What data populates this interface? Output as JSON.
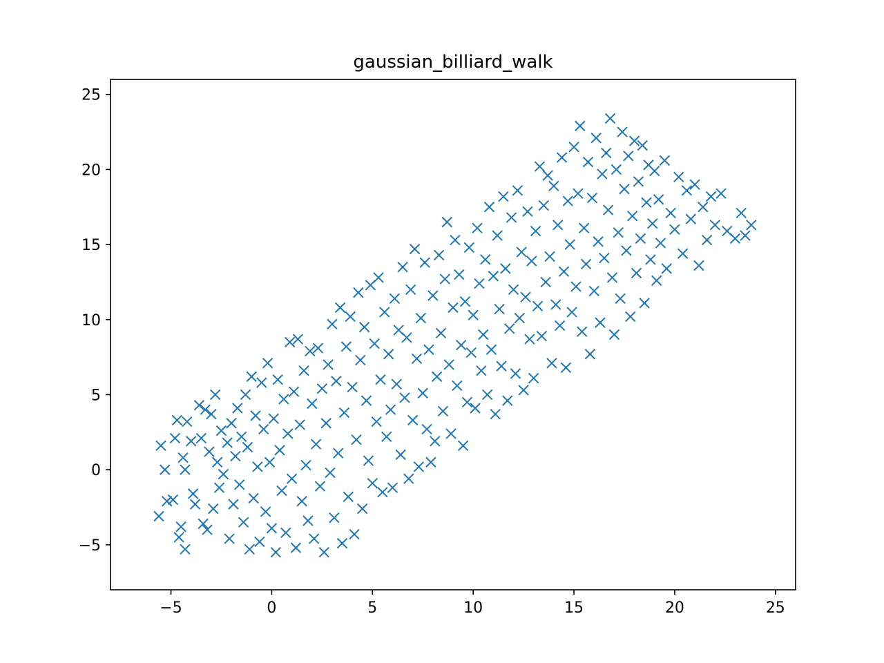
{
  "chart_data": {
    "type": "scatter",
    "title": "gaussian_billiard_walk",
    "xlabel": "",
    "ylabel": "",
    "xlim": [
      -8,
      26
    ],
    "ylim": [
      -8,
      26
    ],
    "xticks": [
      -5,
      0,
      5,
      10,
      15,
      20,
      25
    ],
    "yticks": [
      -5,
      0,
      5,
      10,
      15,
      20,
      25
    ],
    "xtick_labels": [
      "−5",
      "0",
      "5",
      "10",
      "15",
      "20",
      "25"
    ],
    "ytick_labels": [
      "−5",
      "0",
      "5",
      "10",
      "15",
      "20",
      "25"
    ],
    "grid": false,
    "legend": "none",
    "marker": "x",
    "color": "#1f77b4",
    "series": [
      {
        "values": [
          [
            -5.5,
            1.6
          ],
          [
            -5.3,
            0.0
          ],
          [
            -5.6,
            -3.1
          ],
          [
            -5.2,
            -2.1
          ],
          [
            -4.9,
            -2.0
          ],
          [
            -4.8,
            2.1
          ],
          [
            -4.7,
            3.3
          ],
          [
            -4.5,
            -3.8
          ],
          [
            -4.6,
            -4.5
          ],
          [
            -4.3,
            -5.3
          ],
          [
            -4.4,
            0.8
          ],
          [
            -4.3,
            0.0
          ],
          [
            -4.2,
            3.2
          ],
          [
            -4.0,
            1.9
          ],
          [
            -3.9,
            -1.6
          ],
          [
            -3.8,
            -2.3
          ],
          [
            -3.6,
            4.3
          ],
          [
            -3.5,
            2.1
          ],
          [
            -3.4,
            -3.6
          ],
          [
            -3.3,
            4.0
          ],
          [
            -3.2,
            -4.0
          ],
          [
            -3.1,
            1.2
          ],
          [
            -3.0,
            3.7
          ],
          [
            -2.9,
            -2.6
          ],
          [
            -2.8,
            5.0
          ],
          [
            -2.7,
            0.5
          ],
          [
            -2.6,
            -1.2
          ],
          [
            -2.5,
            2.6
          ],
          [
            -2.4,
            -0.3
          ],
          [
            -2.2,
            1.8
          ],
          [
            -2.1,
            -4.6
          ],
          [
            -2.0,
            3.1
          ],
          [
            -1.9,
            -2.3
          ],
          [
            -1.8,
            0.9
          ],
          [
            -1.7,
            4.1
          ],
          [
            -1.6,
            -1.0
          ],
          [
            -1.5,
            2.2
          ],
          [
            -1.4,
            -3.5
          ],
          [
            -1.3,
            5.0
          ],
          [
            -1.2,
            1.5
          ],
          [
            -1.1,
            -5.3
          ],
          [
            -1.0,
            6.2
          ],
          [
            -0.9,
            -1.9
          ],
          [
            -0.8,
            3.6
          ],
          [
            -0.7,
            0.2
          ],
          [
            -0.6,
            -4.8
          ],
          [
            -0.5,
            5.8
          ],
          [
            -0.4,
            2.7
          ],
          [
            -0.3,
            -2.8
          ],
          [
            -0.2,
            7.1
          ],
          [
            -0.1,
            0.5
          ],
          [
            0.0,
            -3.9
          ],
          [
            0.1,
            3.4
          ],
          [
            0.2,
            -5.5
          ],
          [
            0.3,
            6.0
          ],
          [
            0.4,
            1.3
          ],
          [
            0.5,
            -1.4
          ],
          [
            0.6,
            4.7
          ],
          [
            0.7,
            -4.2
          ],
          [
            0.8,
            2.4
          ],
          [
            0.9,
            8.5
          ],
          [
            1.0,
            -0.6
          ],
          [
            1.1,
            5.2
          ],
          [
            1.2,
            -5.2
          ],
          [
            1.3,
            8.7
          ],
          [
            1.4,
            3.0
          ],
          [
            1.5,
            -2.1
          ],
          [
            1.6,
            6.6
          ],
          [
            1.7,
            0.3
          ],
          [
            1.8,
            -3.4
          ],
          [
            1.9,
            7.9
          ],
          [
            2.0,
            4.4
          ],
          [
            2.1,
            -4.6
          ],
          [
            2.2,
            1.7
          ],
          [
            2.3,
            8.1
          ],
          [
            2.4,
            -1.1
          ],
          [
            2.5,
            5.4
          ],
          [
            2.6,
            -5.5
          ],
          [
            2.7,
            3.1
          ],
          [
            2.8,
            7.0
          ],
          [
            2.9,
            -0.2
          ],
          [
            3.0,
            9.7
          ],
          [
            3.1,
            -3.2
          ],
          [
            3.2,
            5.9
          ],
          [
            3.3,
            1.1
          ],
          [
            3.4,
            10.8
          ],
          [
            3.5,
            -4.9
          ],
          [
            3.6,
            3.8
          ],
          [
            3.7,
            8.2
          ],
          [
            3.8,
            -1.8
          ],
          [
            3.9,
            10.2
          ],
          [
            4.0,
            5.5
          ],
          [
            4.1,
            -4.3
          ],
          [
            4.2,
            2.0
          ],
          [
            4.3,
            11.8
          ],
          [
            4.4,
            7.3
          ],
          [
            4.5,
            -2.6
          ],
          [
            4.6,
            9.5
          ],
          [
            4.7,
            4.6
          ],
          [
            4.8,
            0.6
          ],
          [
            4.9,
            12.3
          ],
          [
            5.0,
            -0.9
          ],
          [
            5.1,
            8.4
          ],
          [
            5.2,
            3.2
          ],
          [
            5.3,
            12.8
          ],
          [
            5.4,
            6.0
          ],
          [
            5.5,
            -1.5
          ],
          [
            5.6,
            10.5
          ],
          [
            5.7,
            2.2
          ],
          [
            5.8,
            7.7
          ],
          [
            5.9,
            4.0
          ],
          [
            6.0,
            -1.2
          ],
          [
            6.1,
            11.4
          ],
          [
            6.2,
            5.7
          ],
          [
            6.3,
            9.3
          ],
          [
            6.4,
            1.0
          ],
          [
            6.5,
            13.5
          ],
          [
            6.6,
            4.8
          ],
          [
            6.7,
            8.8
          ],
          [
            6.8,
            -0.6
          ],
          [
            6.9,
            12.0
          ],
          [
            7.0,
            3.3
          ],
          [
            7.1,
            14.7
          ],
          [
            7.2,
            7.4
          ],
          [
            7.3,
            0.2
          ],
          [
            7.4,
            10.1
          ],
          [
            7.5,
            5.1
          ],
          [
            7.6,
            13.8
          ],
          [
            7.7,
            2.7
          ],
          [
            7.8,
            8.0
          ],
          [
            7.9,
            0.5
          ],
          [
            8.0,
            11.6
          ],
          [
            8.1,
            1.9
          ],
          [
            8.2,
            6.2
          ],
          [
            8.3,
            14.3
          ],
          [
            8.4,
            9.1
          ],
          [
            8.5,
            3.9
          ],
          [
            8.6,
            12.7
          ],
          [
            8.7,
            16.5
          ],
          [
            8.8,
            7.0
          ],
          [
            8.9,
            2.4
          ],
          [
            9.0,
            10.8
          ],
          [
            9.1,
            15.3
          ],
          [
            9.2,
            5.6
          ],
          [
            9.3,
            13.0
          ],
          [
            9.4,
            8.3
          ],
          [
            9.5,
            1.6
          ],
          [
            9.6,
            11.2
          ],
          [
            9.7,
            4.5
          ],
          [
            9.8,
            14.8
          ],
          [
            9.9,
            7.8
          ],
          [
            10.0,
            10.3
          ],
          [
            10.1,
            4.1
          ],
          [
            10.2,
            16.1
          ],
          [
            10.3,
            12.4
          ],
          [
            10.4,
            6.6
          ],
          [
            10.5,
            9.0
          ],
          [
            10.6,
            14.0
          ],
          [
            10.7,
            5.0
          ],
          [
            10.8,
            17.5
          ],
          [
            10.9,
            8.0
          ],
          [
            11.0,
            12.9
          ],
          [
            11.1,
            3.7
          ],
          [
            11.2,
            15.6
          ],
          [
            11.3,
            10.7
          ],
          [
            11.4,
            6.9
          ],
          [
            11.5,
            18.2
          ],
          [
            11.6,
            13.4
          ],
          [
            11.7,
            4.6
          ],
          [
            11.8,
            9.4
          ],
          [
            11.9,
            16.8
          ],
          [
            12.0,
            12.0
          ],
          [
            12.1,
            6.4
          ],
          [
            12.2,
            18.6
          ],
          [
            12.3,
            10.1
          ],
          [
            12.4,
            14.5
          ],
          [
            12.5,
            5.3
          ],
          [
            12.6,
            11.5
          ],
          [
            12.7,
            17.2
          ],
          [
            12.8,
            8.7
          ],
          [
            12.9,
            13.9
          ],
          [
            13.0,
            6.1
          ],
          [
            13.1,
            15.9
          ],
          [
            13.2,
            10.9
          ],
          [
            13.3,
            20.2
          ],
          [
            13.4,
            8.9
          ],
          [
            13.5,
            17.6
          ],
          [
            13.6,
            12.5
          ],
          [
            13.7,
            19.6
          ],
          [
            13.8,
            14.2
          ],
          [
            13.9,
            7.1
          ],
          [
            14.0,
            18.9
          ],
          [
            14.1,
            11.0
          ],
          [
            14.2,
            16.3
          ],
          [
            14.3,
            9.6
          ],
          [
            14.4,
            20.8
          ],
          [
            14.5,
            13.2
          ],
          [
            14.6,
            6.8
          ],
          [
            14.7,
            17.9
          ],
          [
            14.8,
            15.0
          ],
          [
            14.9,
            10.5
          ],
          [
            15.0,
            21.5
          ],
          [
            15.1,
            12.2
          ],
          [
            15.2,
            18.4
          ],
          [
            15.3,
            22.9
          ],
          [
            15.4,
            9.2
          ],
          [
            15.5,
            16.1
          ],
          [
            15.6,
            13.7
          ],
          [
            15.7,
            20.5
          ],
          [
            15.8,
            7.7
          ],
          [
            15.9,
            18.1
          ],
          [
            16.0,
            11.9
          ],
          [
            16.1,
            22.1
          ],
          [
            16.2,
            15.2
          ],
          [
            16.3,
            9.8
          ],
          [
            16.4,
            19.7
          ],
          [
            16.5,
            14.1
          ],
          [
            16.6,
            21.1
          ],
          [
            16.7,
            17.3
          ],
          [
            16.8,
            23.4
          ],
          [
            16.9,
            12.8
          ],
          [
            17.0,
            9.0
          ],
          [
            17.1,
            20.0
          ],
          [
            17.2,
            15.8
          ],
          [
            17.3,
            11.4
          ],
          [
            17.4,
            22.5
          ],
          [
            17.5,
            18.7
          ],
          [
            17.6,
            14.6
          ],
          [
            17.7,
            20.9
          ],
          [
            17.8,
            10.2
          ],
          [
            17.9,
            16.9
          ],
          [
            18.0,
            21.9
          ],
          [
            18.1,
            13.1
          ],
          [
            18.2,
            19.2
          ],
          [
            18.3,
            15.4
          ],
          [
            18.4,
            21.6
          ],
          [
            18.5,
            11.1
          ],
          [
            18.6,
            17.8
          ],
          [
            18.7,
            20.3
          ],
          [
            18.8,
            14.0
          ],
          [
            18.9,
            16.4
          ],
          [
            19.0,
            19.9
          ],
          [
            19.1,
            12.6
          ],
          [
            19.2,
            18.0
          ],
          [
            19.3,
            15.1
          ],
          [
            19.5,
            20.6
          ],
          [
            19.6,
            13.4
          ],
          [
            19.8,
            17.1
          ],
          [
            20.0,
            16.0
          ],
          [
            20.2,
            19.5
          ],
          [
            20.4,
            14.4
          ],
          [
            20.6,
            18.6
          ],
          [
            20.8,
            16.7
          ],
          [
            21.0,
            19.0
          ],
          [
            21.2,
            13.6
          ],
          [
            21.4,
            17.5
          ],
          [
            21.6,
            15.3
          ],
          [
            21.8,
            18.2
          ],
          [
            22.0,
            16.3
          ],
          [
            22.3,
            18.4
          ],
          [
            22.6,
            15.9
          ],
          [
            23.0,
            15.4
          ],
          [
            23.3,
            17.1
          ],
          [
            23.5,
            15.6
          ],
          [
            23.8,
            16.3
          ]
        ]
      }
    ]
  }
}
